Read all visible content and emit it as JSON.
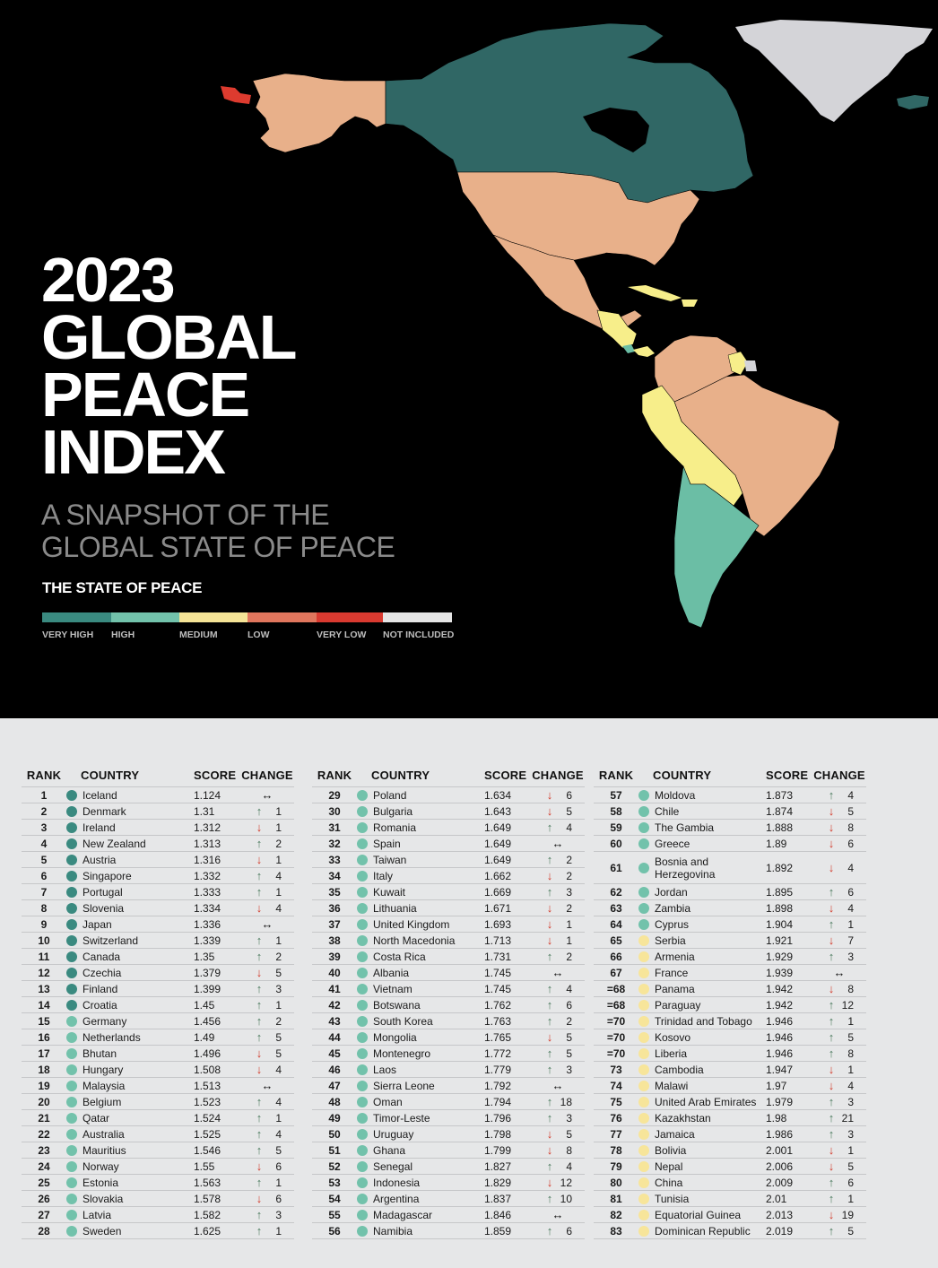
{
  "hero": {
    "title_lines": [
      "2023",
      "GLOBAL",
      "PEACE",
      "INDEX"
    ],
    "subtitle_lines": [
      "A SNAPSHOT OF THE",
      "GLOBAL STATE OF PEACE"
    ],
    "legend": {
      "title": "THE STATE OF PEACE",
      "items": [
        {
          "label": "VERY HIGH",
          "color": "#3a8a80"
        },
        {
          "label": "HIGH",
          "color": "#72c2ab"
        },
        {
          "label": "MEDIUM",
          "color": "#f5e496"
        },
        {
          "label": "LOW",
          "color": "#e0765d"
        },
        {
          "label": "VERY LOW",
          "color": "#d93a30"
        },
        {
          "label": "NOT INCLUDED",
          "color": "#e5e5e5"
        }
      ]
    },
    "map": {
      "colors": {
        "very_high": "#306765",
        "high": "#6bbea5",
        "medium": "#f7ee8a",
        "low": "#e8b08a",
        "very_low": "#dd3b2f",
        "not_included": "#d4d4d8"
      }
    }
  },
  "table": {
    "headers": {
      "rank": "RANK",
      "country": "COUNTRY",
      "score": "SCORE",
      "change": "CHANGE"
    },
    "dot_colors": {
      "very_high": "#3a8a80",
      "high": "#72c2ab",
      "medium": "#f7e59a"
    },
    "columns": [
      [
        {
          "rank": "1",
          "country": "Iceland",
          "score": "1.124",
          "dir": "same",
          "change": "",
          "level": "very_high"
        },
        {
          "rank": "2",
          "country": "Denmark",
          "score": "1.31",
          "dir": "up",
          "change": "1",
          "level": "very_high"
        },
        {
          "rank": "3",
          "country": "Ireland",
          "score": "1.312",
          "dir": "down",
          "change": "1",
          "level": "very_high"
        },
        {
          "rank": "4",
          "country": "New Zealand",
          "score": "1.313",
          "dir": "up",
          "change": "2",
          "level": "very_high"
        },
        {
          "rank": "5",
          "country": "Austria",
          "score": "1.316",
          "dir": "down",
          "change": "1",
          "level": "very_high"
        },
        {
          "rank": "6",
          "country": "Singapore",
          "score": "1.332",
          "dir": "up",
          "change": "4",
          "level": "very_high"
        },
        {
          "rank": "7",
          "country": "Portugal",
          "score": "1.333",
          "dir": "up",
          "change": "1",
          "level": "very_high"
        },
        {
          "rank": "8",
          "country": "Slovenia",
          "score": "1.334",
          "dir": "down",
          "change": "4",
          "level": "very_high"
        },
        {
          "rank": "9",
          "country": "Japan",
          "score": "1.336",
          "dir": "same",
          "change": "",
          "level": "very_high"
        },
        {
          "rank": "10",
          "country": "Switzerland",
          "score": "1.339",
          "dir": "up",
          "change": "1",
          "level": "very_high"
        },
        {
          "rank": "11",
          "country": "Canada",
          "score": "1.35",
          "dir": "up",
          "change": "2",
          "level": "very_high"
        },
        {
          "rank": "12",
          "country": "Czechia",
          "score": "1.379",
          "dir": "down",
          "change": "5",
          "level": "very_high"
        },
        {
          "rank": "13",
          "country": "Finland",
          "score": "1.399",
          "dir": "up",
          "change": "3",
          "level": "very_high"
        },
        {
          "rank": "14",
          "country": "Croatia",
          "score": "1.45",
          "dir": "up",
          "change": "1",
          "level": "very_high"
        },
        {
          "rank": "15",
          "country": "Germany",
          "score": "1.456",
          "dir": "up",
          "change": "2",
          "level": "high"
        },
        {
          "rank": "16",
          "country": "Netherlands",
          "score": "1.49",
          "dir": "up",
          "change": "5",
          "level": "high"
        },
        {
          "rank": "17",
          "country": "Bhutan",
          "score": "1.496",
          "dir": "down",
          "change": "5",
          "level": "high"
        },
        {
          "rank": "18",
          "country": "Hungary",
          "score": "1.508",
          "dir": "down",
          "change": "4",
          "level": "high"
        },
        {
          "rank": "19",
          "country": "Malaysia",
          "score": "1.513",
          "dir": "same",
          "change": "",
          "level": "high"
        },
        {
          "rank": "20",
          "country": "Belgium",
          "score": "1.523",
          "dir": "up",
          "change": "4",
          "level": "high"
        },
        {
          "rank": "21",
          "country": "Qatar",
          "score": "1.524",
          "dir": "up",
          "change": "1",
          "level": "high"
        },
        {
          "rank": "22",
          "country": "Australia",
          "score": "1.525",
          "dir": "up",
          "change": "4",
          "level": "high"
        },
        {
          "rank": "23",
          "country": "Mauritius",
          "score": "1.546",
          "dir": "up",
          "change": "5",
          "level": "high"
        },
        {
          "rank": "24",
          "country": "Norway",
          "score": "1.55",
          "dir": "down",
          "change": "6",
          "level": "high"
        },
        {
          "rank": "25",
          "country": "Estonia",
          "score": "1.563",
          "dir": "up",
          "change": "1",
          "level": "high"
        },
        {
          "rank": "26",
          "country": "Slovakia",
          "score": "1.578",
          "dir": "down",
          "change": "6",
          "level": "high"
        },
        {
          "rank": "27",
          "country": "Latvia",
          "score": "1.582",
          "dir": "up",
          "change": "3",
          "level": "high"
        },
        {
          "rank": "28",
          "country": "Sweden",
          "score": "1.625",
          "dir": "up",
          "change": "1",
          "level": "high"
        }
      ],
      [
        {
          "rank": "29",
          "country": "Poland",
          "score": "1.634",
          "dir": "down",
          "change": "6",
          "level": "high"
        },
        {
          "rank": "30",
          "country": "Bulgaria",
          "score": "1.643",
          "dir": "down",
          "change": "5",
          "level": "high"
        },
        {
          "rank": "31",
          "country": "Romania",
          "score": "1.649",
          "dir": "up",
          "change": "4",
          "level": "high"
        },
        {
          "rank": "32",
          "country": "Spain",
          "score": "1.649",
          "dir": "same",
          "change": "",
          "level": "high"
        },
        {
          "rank": "33",
          "country": "Taiwan",
          "score": "1.649",
          "dir": "up",
          "change": "2",
          "level": "high"
        },
        {
          "rank": "34",
          "country": "Italy",
          "score": "1.662",
          "dir": "down",
          "change": "2",
          "level": "high"
        },
        {
          "rank": "35",
          "country": "Kuwait",
          "score": "1.669",
          "dir": "up",
          "change": "3",
          "level": "high"
        },
        {
          "rank": "36",
          "country": "Lithuania",
          "score": "1.671",
          "dir": "down",
          "change": "2",
          "level": "high"
        },
        {
          "rank": "37",
          "country": "United Kingdom",
          "score": "1.693",
          "dir": "down",
          "change": "1",
          "level": "high"
        },
        {
          "rank": "38",
          "country": "North Macedonia",
          "score": "1.713",
          "dir": "down",
          "change": "1",
          "level": "high"
        },
        {
          "rank": "39",
          "country": "Costa Rica",
          "score": "1.731",
          "dir": "up",
          "change": "2",
          "level": "high"
        },
        {
          "rank": "40",
          "country": "Albania",
          "score": "1.745",
          "dir": "same",
          "change": "",
          "level": "high"
        },
        {
          "rank": "41",
          "country": "Vietnam",
          "score": "1.745",
          "dir": "up",
          "change": "4",
          "level": "high"
        },
        {
          "rank": "42",
          "country": "Botswana",
          "score": "1.762",
          "dir": "up",
          "change": "6",
          "level": "high"
        },
        {
          "rank": "43",
          "country": "South Korea",
          "score": "1.763",
          "dir": "up",
          "change": "2",
          "level": "high"
        },
        {
          "rank": "44",
          "country": "Mongolia",
          "score": "1.765",
          "dir": "down",
          "change": "5",
          "level": "high"
        },
        {
          "rank": "45",
          "country": "Montenegro",
          "score": "1.772",
          "dir": "up",
          "change": "5",
          "level": "high"
        },
        {
          "rank": "46",
          "country": "Laos",
          "score": "1.779",
          "dir": "up",
          "change": "3",
          "level": "high"
        },
        {
          "rank": "47",
          "country": "Sierra Leone",
          "score": "1.792",
          "dir": "same",
          "change": "",
          "level": "high"
        },
        {
          "rank": "48",
          "country": "Oman",
          "score": "1.794",
          "dir": "up",
          "change": "18",
          "level": "high"
        },
        {
          "rank": "49",
          "country": "Timor-Leste",
          "score": "1.796",
          "dir": "up",
          "change": "3",
          "level": "high"
        },
        {
          "rank": "50",
          "country": "Uruguay",
          "score": "1.798",
          "dir": "down",
          "change": "5",
          "level": "high"
        },
        {
          "rank": "51",
          "country": "Ghana",
          "score": "1.799",
          "dir": "down",
          "change": "8",
          "level": "high"
        },
        {
          "rank": "52",
          "country": "Senegal",
          "score": "1.827",
          "dir": "up",
          "change": "4",
          "level": "high"
        },
        {
          "rank": "53",
          "country": "Indonesia",
          "score": "1.829",
          "dir": "down",
          "change": "12",
          "level": "high"
        },
        {
          "rank": "54",
          "country": "Argentina",
          "score": "1.837",
          "dir": "up",
          "change": "10",
          "level": "high"
        },
        {
          "rank": "55",
          "country": "Madagascar",
          "score": "1.846",
          "dir": "same",
          "change": "",
          "level": "high"
        },
        {
          "rank": "56",
          "country": "Namibia",
          "score": "1.859",
          "dir": "up",
          "change": "6",
          "level": "high"
        }
      ],
      [
        {
          "rank": "57",
          "country": "Moldova",
          "score": "1.873",
          "dir": "up",
          "change": "4",
          "level": "high"
        },
        {
          "rank": "58",
          "country": "Chile",
          "score": "1.874",
          "dir": "down",
          "change": "5",
          "level": "high"
        },
        {
          "rank": "59",
          "country": "The Gambia",
          "score": "1.888",
          "dir": "down",
          "change": "8",
          "level": "high"
        },
        {
          "rank": "60",
          "country": "Greece",
          "score": "1.89",
          "dir": "down",
          "change": "6",
          "level": "high"
        },
        {
          "rank": "61",
          "country": "Bosnia and Herzegovina",
          "score": "1.892",
          "dir": "down",
          "change": "4",
          "level": "high",
          "tall": true
        },
        {
          "rank": "62",
          "country": "Jordan",
          "score": "1.895",
          "dir": "up",
          "change": "6",
          "level": "high"
        },
        {
          "rank": "63",
          "country": "Zambia",
          "score": "1.898",
          "dir": "down",
          "change": "4",
          "level": "high"
        },
        {
          "rank": "64",
          "country": "Cyprus",
          "score": "1.904",
          "dir": "up",
          "change": "1",
          "level": "high"
        },
        {
          "rank": "65",
          "country": "Serbia",
          "score": "1.921",
          "dir": "down",
          "change": "7",
          "level": "medium"
        },
        {
          "rank": "66",
          "country": "Armenia",
          "score": "1.929",
          "dir": "up",
          "change": "3",
          "level": "medium"
        },
        {
          "rank": "67",
          "country": "France",
          "score": "1.939",
          "dir": "same",
          "change": "",
          "level": "medium"
        },
        {
          "rank": "=68",
          "country": "Panama",
          "score": "1.942",
          "dir": "down",
          "change": "8",
          "level": "medium"
        },
        {
          "rank": "=68",
          "country": "Paraguay",
          "score": "1.942",
          "dir": "up",
          "change": "12",
          "level": "medium"
        },
        {
          "rank": "=70",
          "country": "Trinidad and Tobago",
          "score": "1.946",
          "dir": "up",
          "change": "1",
          "level": "medium"
        },
        {
          "rank": "=70",
          "country": "Kosovo",
          "score": "1.946",
          "dir": "up",
          "change": "5",
          "level": "medium"
        },
        {
          "rank": "=70",
          "country": "Liberia",
          "score": "1.946",
          "dir": "up",
          "change": "8",
          "level": "medium"
        },
        {
          "rank": "73",
          "country": "Cambodia",
          "score": "1.947",
          "dir": "down",
          "change": "1",
          "level": "medium"
        },
        {
          "rank": "74",
          "country": "Malawi",
          "score": "1.97",
          "dir": "down",
          "change": "4",
          "level": "medium"
        },
        {
          "rank": "75",
          "country": "United Arab Emirates",
          "score": "1.979",
          "dir": "up",
          "change": "3",
          "level": "medium"
        },
        {
          "rank": "76",
          "country": "Kazakhstan",
          "score": "1.98",
          "dir": "up",
          "change": "21",
          "level": "medium"
        },
        {
          "rank": "77",
          "country": "Jamaica",
          "score": "1.986",
          "dir": "up",
          "change": "3",
          "level": "medium"
        },
        {
          "rank": "78",
          "country": "Bolivia",
          "score": "2.001",
          "dir": "down",
          "change": "1",
          "level": "medium"
        },
        {
          "rank": "79",
          "country": "Nepal",
          "score": "2.006",
          "dir": "down",
          "change": "5",
          "level": "medium"
        },
        {
          "rank": "80",
          "country": "China",
          "score": "2.009",
          "dir": "up",
          "change": "6",
          "level": "medium"
        },
        {
          "rank": "81",
          "country": "Tunisia",
          "score": "2.01",
          "dir": "up",
          "change": "1",
          "level": "medium"
        },
        {
          "rank": "82",
          "country": "Equatorial Guinea",
          "score": "2.013",
          "dir": "down",
          "change": "19",
          "level": "medium"
        },
        {
          "rank": "83",
          "country": "Dominican Republic",
          "score": "2.019",
          "dir": "up",
          "change": "5",
          "level": "medium"
        }
      ]
    ],
    "arrows": {
      "up": "↑",
      "down": "↓",
      "same": "↔"
    }
  }
}
